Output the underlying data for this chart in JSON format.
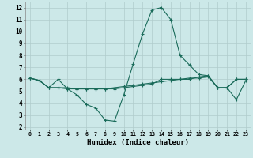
{
  "title": "",
  "xlabel": "Humidex (Indice chaleur)",
  "bg_color": "#cce8e8",
  "grid_color": "#b0cccc",
  "line_color": "#1a6b5a",
  "xlim": [
    -0.5,
    23.5
  ],
  "ylim": [
    1.8,
    12.5
  ],
  "xticks": [
    0,
    1,
    2,
    3,
    4,
    5,
    6,
    7,
    8,
    9,
    10,
    11,
    12,
    13,
    14,
    15,
    16,
    17,
    18,
    19,
    20,
    21,
    22,
    23
  ],
  "yticks": [
    2,
    3,
    4,
    5,
    6,
    7,
    8,
    9,
    10,
    11,
    12
  ],
  "series": [
    [
      6.1,
      5.9,
      5.3,
      6.0,
      5.2,
      4.7,
      3.9,
      3.6,
      2.6,
      2.5,
      4.7,
      7.3,
      9.8,
      11.8,
      12.0,
      11.0,
      8.0,
      7.2,
      6.4,
      6.3,
      5.3,
      5.3,
      4.3,
      5.9
    ],
    [
      6.1,
      5.9,
      5.3,
      5.3,
      5.3,
      5.2,
      5.2,
      5.2,
      5.2,
      5.3,
      5.4,
      5.5,
      5.6,
      5.7,
      5.8,
      5.9,
      6.0,
      6.1,
      6.1,
      6.2,
      5.3,
      5.3,
      6.0,
      6.0
    ],
    [
      6.1,
      5.9,
      5.3,
      5.3,
      5.2,
      5.2,
      5.2,
      5.2,
      5.2,
      5.2,
      5.3,
      5.4,
      5.5,
      5.6,
      6.0,
      6.0,
      6.0,
      6.0,
      6.2,
      6.3,
      5.3,
      5.3,
      6.0,
      6.0
    ]
  ]
}
